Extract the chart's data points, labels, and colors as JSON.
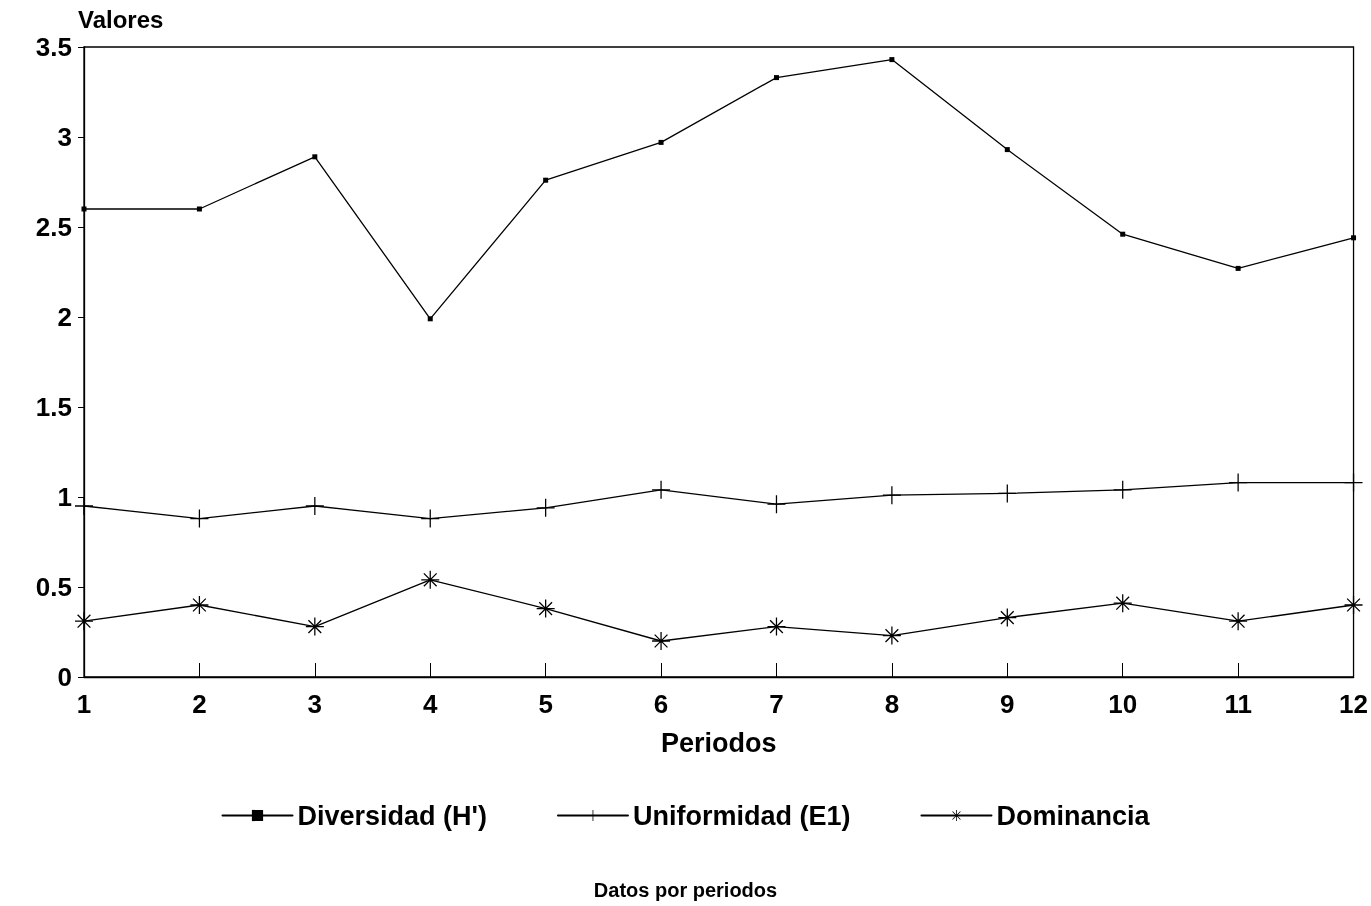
{
  "chart_data": {
    "type": "line",
    "ylabel": "Valores",
    "xlabel": "Periodos",
    "annotations": [
      "Datos por periodos"
    ],
    "x": [
      1,
      2,
      3,
      4,
      5,
      6,
      7,
      8,
      9,
      10,
      11,
      12
    ],
    "xlim": [
      1,
      12
    ],
    "xticks": [
      1,
      2,
      3,
      4,
      5,
      6,
      7,
      8,
      9,
      10,
      11,
      12
    ],
    "ylim": [
      0,
      3.5
    ],
    "yticks": [
      0,
      0.5,
      1,
      1.5,
      2,
      2.5,
      3,
      3.5
    ],
    "grid": false,
    "legend": "bottom",
    "line_style": "solid",
    "series": [
      {
        "name": "Diversidad (H')",
        "color": "#000000",
        "marker": "square",
        "values": [
          2.6,
          2.6,
          2.89,
          1.99,
          2.76,
          2.97,
          3.33,
          3.43,
          2.93,
          2.46,
          2.27,
          2.44
        ]
      },
      {
        "name": "Uniformidad (E1)",
        "color": "#000000",
        "marker": "cross",
        "values": [
          0.95,
          0.88,
          0.95,
          0.88,
          0.94,
          1.04,
          0.96,
          1.01,
          1.02,
          1.04,
          1.08,
          1.08
        ]
      },
      {
        "name": "Dominancia",
        "color": "#000000",
        "marker": "star",
        "values": [
          0.31,
          0.4,
          0.28,
          0.54,
          0.38,
          0.2,
          0.28,
          0.23,
          0.33,
          0.41,
          0.31,
          0.4
        ]
      }
    ]
  }
}
